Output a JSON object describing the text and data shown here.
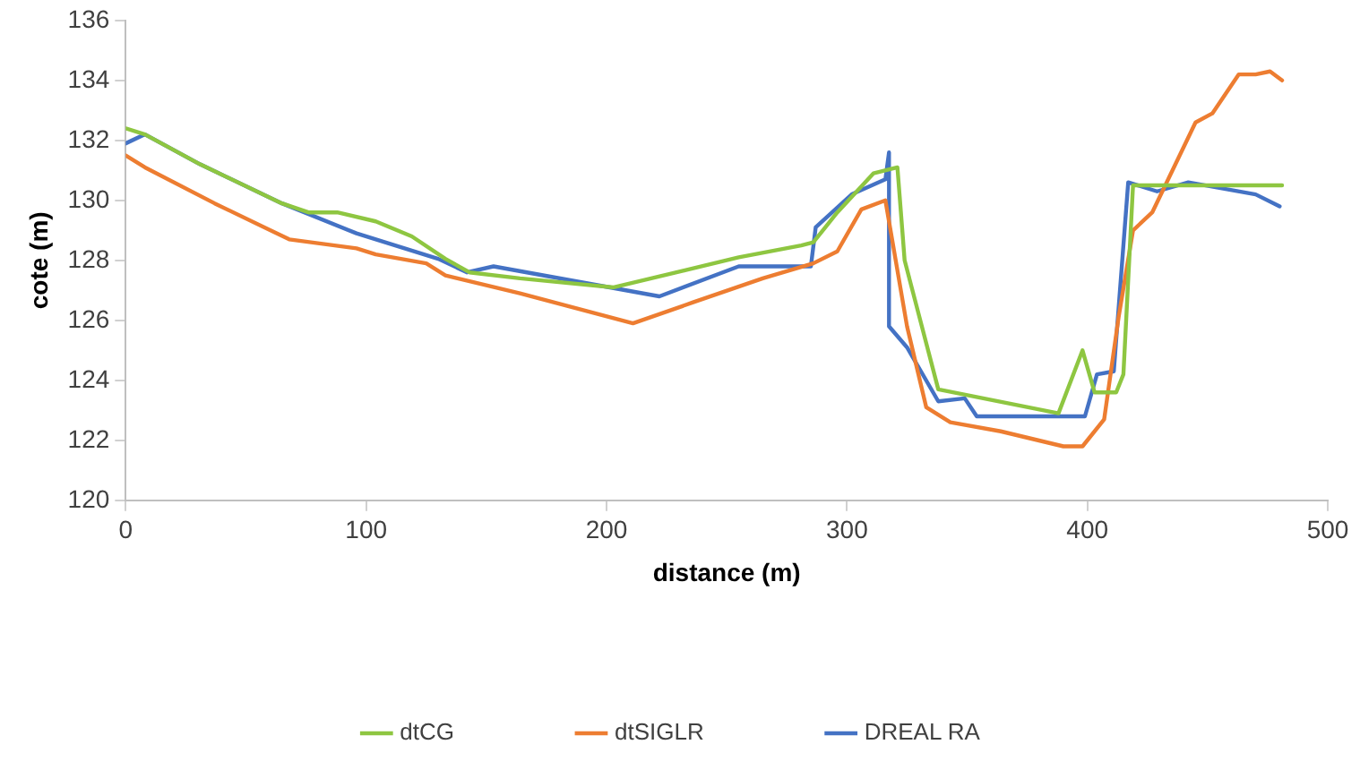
{
  "chart_data": {
    "type": "line",
    "xlabel": "distance (m)",
    "ylabel": "cote (m)",
    "xlim": [
      0,
      500
    ],
    "xticks": [
      0,
      100,
      200,
      300,
      400,
      500
    ],
    "ylim": [
      120,
      136
    ],
    "yticks": [
      120,
      122,
      124,
      126,
      128,
      130,
      132,
      134,
      136
    ],
    "grid": false,
    "legend": "bottom",
    "marker": "none",
    "line_style": "solid",
    "series": [
      {
        "name": "dtCG",
        "color": "#8ec641",
        "x": [
          0,
          8,
          31,
          65,
          76,
          88,
          104,
          119,
          133,
          143,
          164,
          203,
          255,
          281,
          286,
          296,
          311,
          321,
          324,
          338,
          388,
          398,
          403,
          412,
          415,
          419,
          481
        ],
        "values": [
          132.4,
          132.2,
          131.2,
          129.9,
          129.6,
          129.6,
          129.3,
          128.8,
          128.05,
          127.6,
          127.4,
          127.1,
          128.1,
          128.5,
          128.6,
          129.6,
          130.9,
          131.1,
          128,
          123.7,
          122.9,
          125,
          123.6,
          123.6,
          124.2,
          130.5,
          130.5
        ]
      },
      {
        "name": "dtSIGLR",
        "color": "#ed7d31",
        "x": [
          0,
          8,
          37,
          68,
          96,
          104,
          125,
          133,
          164,
          211,
          236,
          265,
          286,
          296,
          306,
          316,
          325,
          333,
          343,
          364,
          390,
          398,
          407,
          413,
          419,
          427,
          445,
          452,
          463,
          470,
          476,
          481
        ],
        "values": [
          131.5,
          131.1,
          129.9,
          128.7,
          128.4,
          128.2,
          127.9,
          127.5,
          126.9,
          125.9,
          126.6,
          127.4,
          127.9,
          128.3,
          129.7,
          130,
          125.8,
          123.1,
          122.6,
          122.3,
          121.8,
          121.8,
          122.7,
          126.1,
          129,
          129.6,
          132.6,
          132.9,
          134.2,
          134.2,
          134.3,
          134
        ]
      },
      {
        "name": "DREAL RA",
        "color": "#4472c4",
        "x": [
          0,
          8,
          31,
          65,
          96,
          130,
          142,
          153,
          222,
          255,
          285,
          287,
          302,
          316,
          317.5,
          317.5,
          325,
          338,
          349,
          354,
          399,
          404,
          411,
          417,
          429,
          442,
          470,
          480
        ],
        "values": [
          131.9,
          132.2,
          131.2,
          129.9,
          128.9,
          128.05,
          127.6,
          127.8,
          126.8,
          127.8,
          127.8,
          129.1,
          130.2,
          130.7,
          131.6,
          125.8,
          125.1,
          123.3,
          123.4,
          122.8,
          122.8,
          124.2,
          124.3,
          130.6,
          130.3,
          130.6,
          130.2,
          129.8
        ]
      }
    ]
  }
}
